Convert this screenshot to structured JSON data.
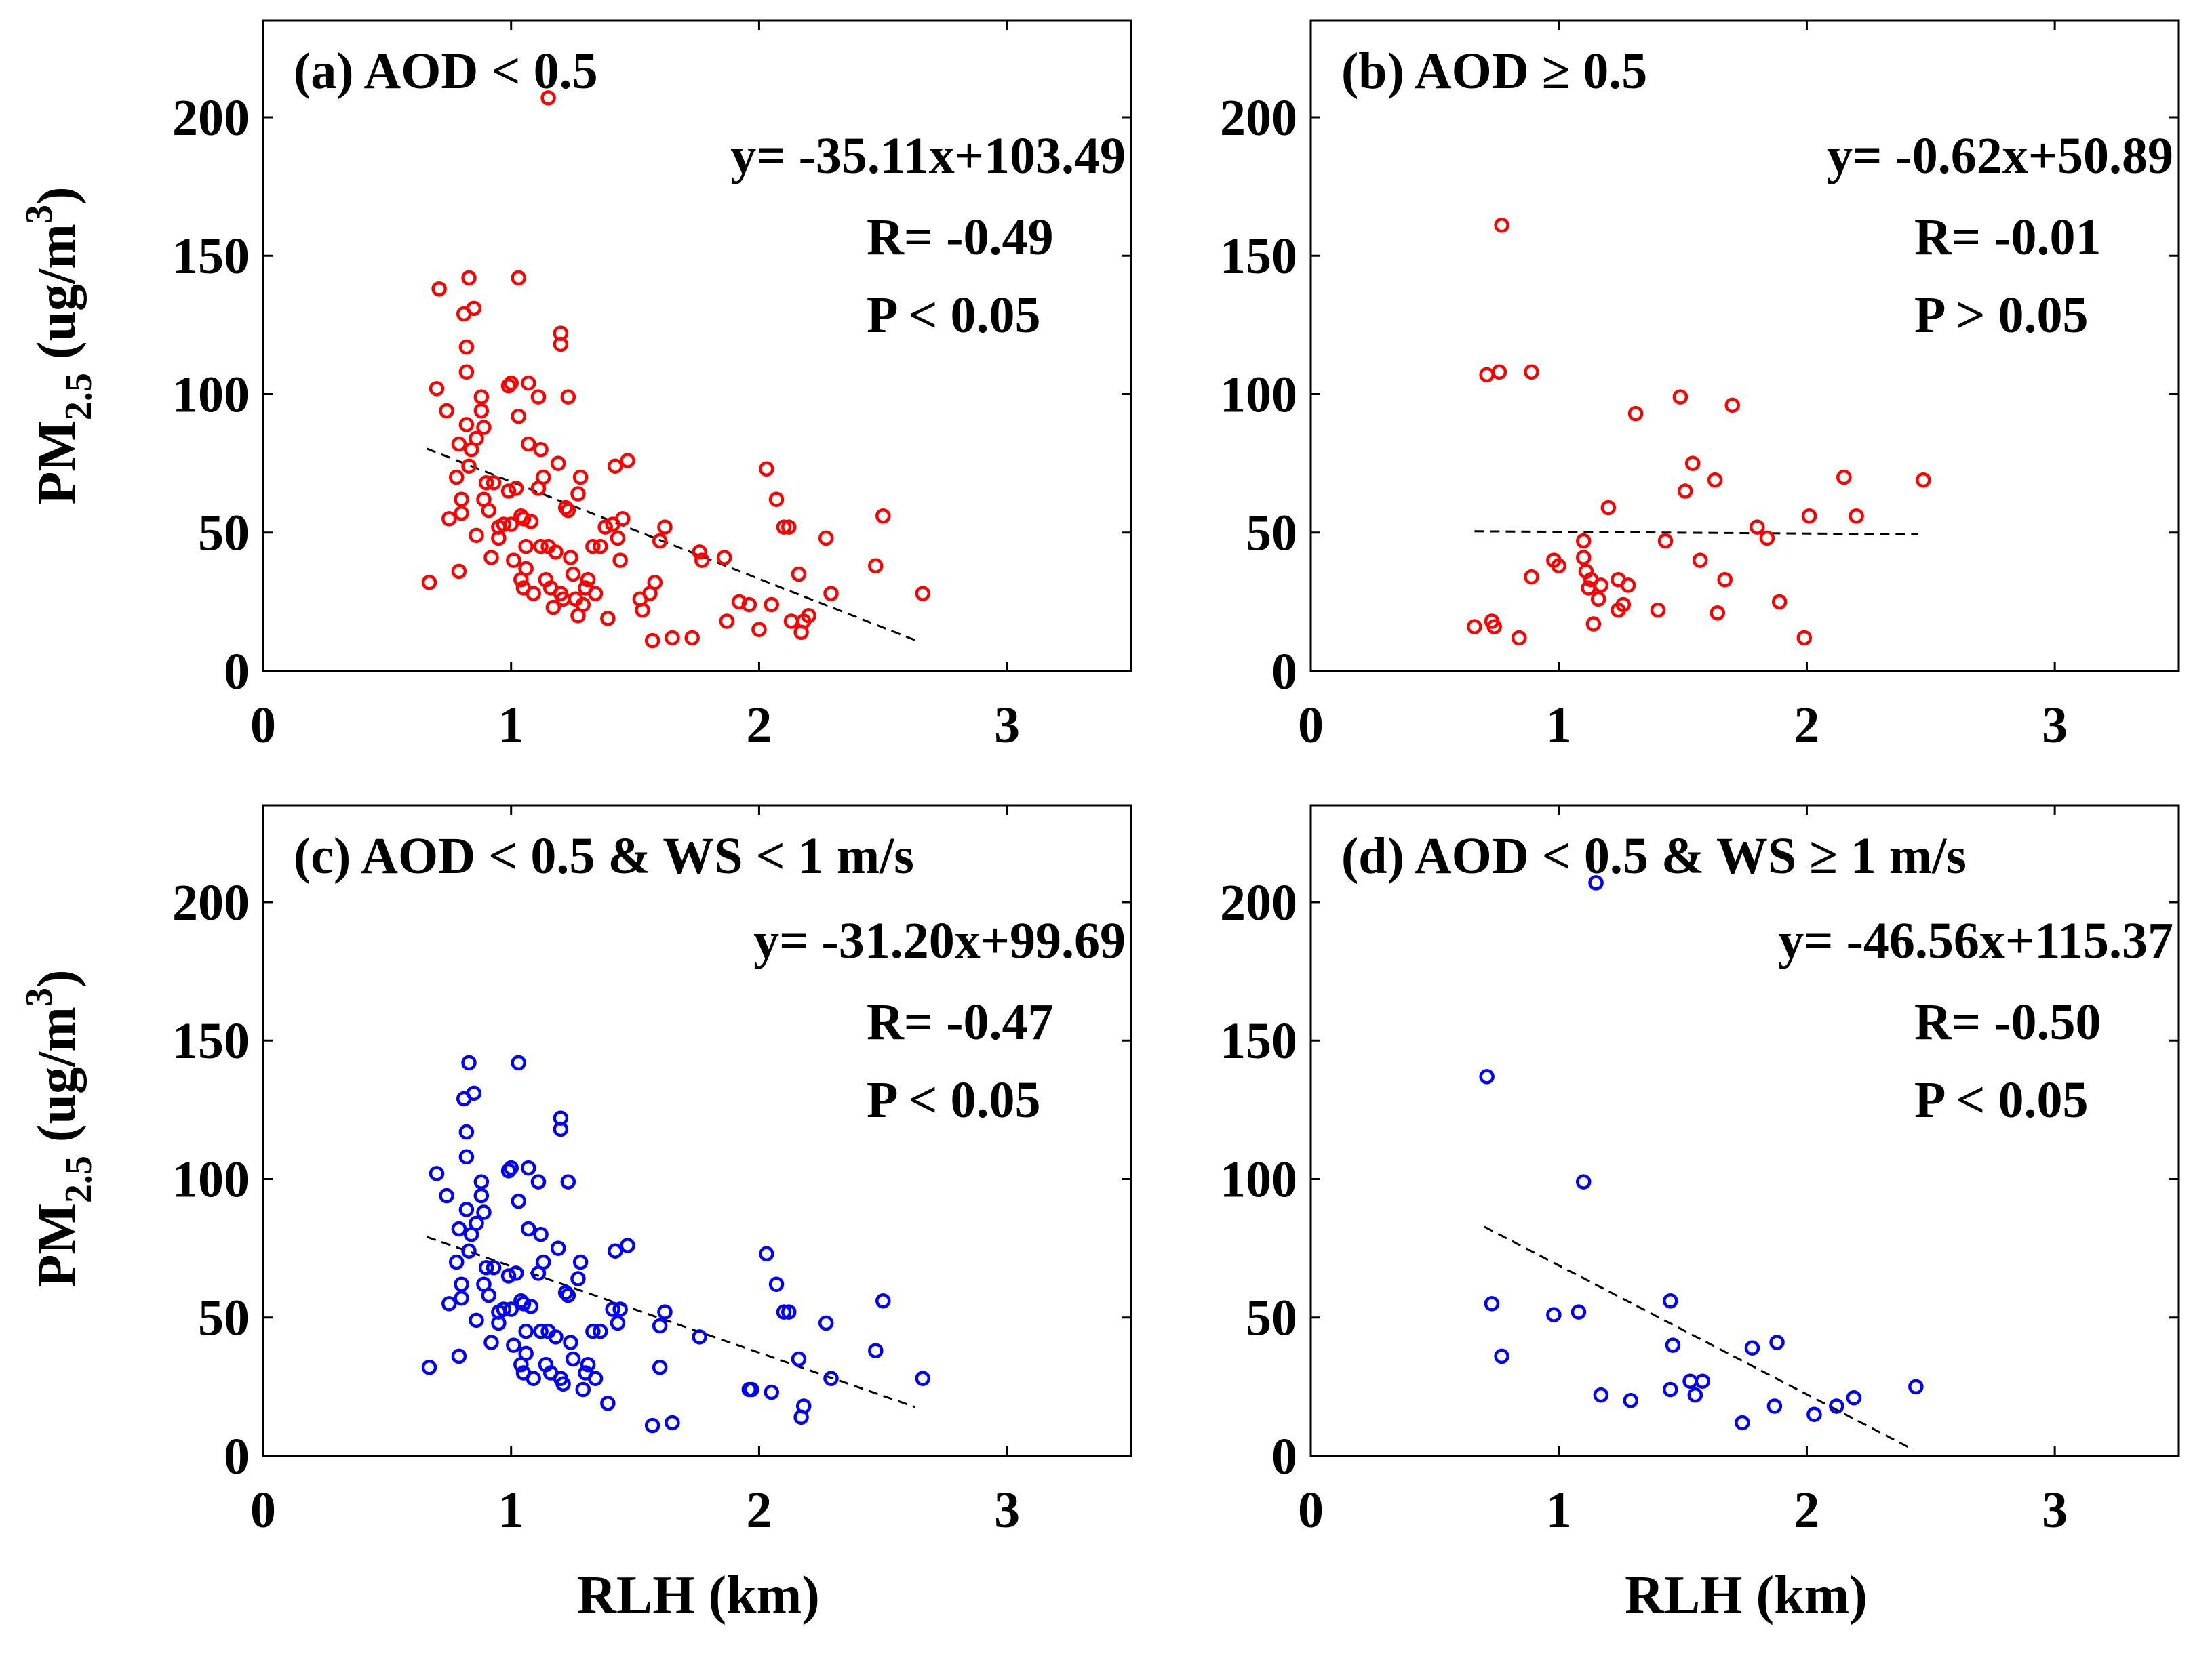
{
  "figure": {
    "ylabel": {
      "main": "PM",
      "sub": "2.5",
      "units": " (ug/m",
      "exponent": "3",
      "close": ")"
    },
    "xlabel": "RLH (km)"
  },
  "chart_data": [
    {
      "type": "scatter",
      "title": "(a) AOD < 0.5",
      "equation": "y= -35.11x+103.49",
      "r_text": "R= -0.49",
      "p_text": "P < 0.05",
      "xlabel": "",
      "ylabel": "PM2.5 (ug/m3)",
      "xlim": [
        0,
        3.5
      ],
      "ylim": [
        0,
        235
      ],
      "xticks": [
        "0",
        "1",
        "2",
        "3"
      ],
      "yticks": [
        "0",
        "50",
        "100",
        "150",
        "200"
      ],
      "color": "#ff0000",
      "fit": {
        "slope": -35.11,
        "intercept": 103.49,
        "x_range": [
          0.66,
          2.63
        ]
      },
      "points": [
        [
          0.67,
          32
        ],
        [
          0.71,
          138
        ],
        [
          0.7,
          102
        ],
        [
          0.74,
          94
        ],
        [
          0.75,
          55
        ],
        [
          0.78,
          70
        ],
        [
          0.79,
          36
        ],
        [
          0.79,
          82
        ],
        [
          0.8,
          62
        ],
        [
          0.8,
          57
        ],
        [
          0.82,
          108
        ],
        [
          0.82,
          117
        ],
        [
          0.81,
          129
        ],
        [
          0.83,
          142
        ],
        [
          0.82,
          89
        ],
        [
          0.83,
          74
        ],
        [
          0.84,
          80
        ],
        [
          0.85,
          131
        ],
        [
          0.86,
          84
        ],
        [
          0.86,
          49
        ],
        [
          0.88,
          99
        ],
        [
          0.88,
          94
        ],
        [
          0.89,
          62
        ],
        [
          0.9,
          68
        ],
        [
          0.89,
          88
        ],
        [
          0.91,
          58
        ],
        [
          0.92,
          41
        ],
        [
          0.93,
          68
        ],
        [
          0.95,
          52
        ],
        [
          0.95,
          48
        ],
        [
          0.97,
          53
        ],
        [
          0.99,
          103
        ],
        [
          1.0,
          104
        ],
        [
          1.0,
          53
        ],
        [
          0.99,
          65
        ],
        [
          1.01,
          40
        ],
        [
          1.02,
          66
        ],
        [
          1.03,
          92
        ],
        [
          1.04,
          56
        ],
        [
          1.03,
          142
        ],
        [
          1.05,
          55
        ],
        [
          1.04,
          33
        ],
        [
          1.05,
          30
        ],
        [
          1.06,
          45
        ],
        [
          1.06,
          37
        ],
        [
          1.07,
          82
        ],
        [
          1.07,
          104
        ],
        [
          1.08,
          54
        ],
        [
          1.09,
          28
        ],
        [
          1.11,
          99
        ],
        [
          1.11,
          66
        ],
        [
          1.12,
          45
        ],
        [
          1.13,
          70
        ],
        [
          1.12,
          80
        ],
        [
          1.14,
          33
        ],
        [
          1.15,
          45
        ],
        [
          1.16,
          30
        ],
        [
          1.15,
          207
        ],
        [
          1.17,
          23
        ],
        [
          1.18,
          43
        ],
        [
          1.2,
          122
        ],
        [
          1.2,
          118
        ],
        [
          1.19,
          75
        ],
        [
          1.2,
          28
        ],
        [
          1.21,
          26
        ],
        [
          1.22,
          59
        ],
        [
          1.23,
          58
        ],
        [
          1.23,
          99
        ],
        [
          1.24,
          41
        ],
        [
          1.25,
          35
        ],
        [
          1.26,
          26
        ],
        [
          1.27,
          64
        ],
        [
          1.28,
          70
        ],
        [
          1.27,
          20
        ],
        [
          1.29,
          24
        ],
        [
          1.3,
          30
        ],
        [
          1.31,
          33
        ],
        [
          1.33,
          45
        ],
        [
          1.34,
          28
        ],
        [
          1.36,
          45
        ],
        [
          1.38,
          52
        ],
        [
          1.39,
          19
        ],
        [
          1.41,
          53
        ],
        [
          1.42,
          74
        ],
        [
          1.43,
          48
        ],
        [
          1.44,
          40
        ],
        [
          1.45,
          55
        ],
        [
          1.47,
          76
        ],
        [
          1.52,
          26
        ],
        [
          1.53,
          22
        ],
        [
          1.56,
          28
        ],
        [
          1.57,
          11
        ],
        [
          1.58,
          32
        ],
        [
          1.6,
          47
        ],
        [
          1.62,
          52
        ],
        [
          1.65,
          12
        ],
        [
          1.73,
          12
        ],
        [
          1.76,
          43
        ],
        [
          1.77,
          40
        ],
        [
          1.86,
          41
        ],
        [
          1.87,
          18
        ],
        [
          1.92,
          25
        ],
        [
          1.96,
          24
        ],
        [
          2.0,
          15
        ],
        [
          2.03,
          73
        ],
        [
          2.05,
          24
        ],
        [
          2.07,
          62
        ],
        [
          2.1,
          52
        ],
        [
          2.12,
          52
        ],
        [
          2.13,
          18
        ],
        [
          2.16,
          35
        ],
        [
          2.17,
          14
        ],
        [
          2.18,
          18
        ],
        [
          2.2,
          20
        ],
        [
          2.27,
          48
        ],
        [
          2.29,
          28
        ],
        [
          2.47,
          38
        ],
        [
          2.5,
          56
        ],
        [
          2.66,
          28
        ]
      ]
    },
    {
      "type": "scatter",
      "title": "(b) AOD ≥ 0.5",
      "equation": "y= -0.62x+50.89",
      "r_text": "R= -0.01",
      "p_text": "P > 0.05",
      "xlabel": "",
      "ylabel": "",
      "xlim": [
        0,
        3.5
      ],
      "ylim": [
        0,
        235
      ],
      "xticks": [
        "0",
        "1",
        "2",
        "3"
      ],
      "yticks": [
        "0",
        "50",
        "100",
        "150",
        "200"
      ],
      "color": "#ff0000",
      "fit": {
        "slope": -0.62,
        "intercept": 50.89,
        "x_range": [
          0.66,
          2.45
        ]
      },
      "points": [
        [
          0.66,
          16
        ],
        [
          0.71,
          107
        ],
        [
          0.73,
          18
        ],
        [
          0.74,
          16
        ],
        [
          0.76,
          108
        ],
        [
          0.77,
          161
        ],
        [
          0.84,
          12
        ],
        [
          0.89,
          108
        ],
        [
          0.89,
          34
        ],
        [
          0.98,
          40
        ],
        [
          1.0,
          38
        ],
        [
          1.1,
          47
        ],
        [
          1.1,
          41
        ],
        [
          1.11,
          36
        ],
        [
          1.12,
          30
        ],
        [
          1.13,
          33
        ],
        [
          1.14,
          17
        ],
        [
          1.16,
          26
        ],
        [
          1.17,
          31
        ],
        [
          1.2,
          59
        ],
        [
          1.24,
          33
        ],
        [
          1.24,
          22
        ],
        [
          1.26,
          24
        ],
        [
          1.28,
          31
        ],
        [
          1.31,
          93
        ],
        [
          1.4,
          22
        ],
        [
          1.43,
          47
        ],
        [
          1.49,
          99
        ],
        [
          1.51,
          65
        ],
        [
          1.54,
          75
        ],
        [
          1.57,
          40
        ],
        [
          1.63,
          69
        ],
        [
          1.64,
          21
        ],
        [
          1.67,
          33
        ],
        [
          1.7,
          96
        ],
        [
          1.8,
          52
        ],
        [
          1.84,
          48
        ],
        [
          1.89,
          25
        ],
        [
          1.99,
          12
        ],
        [
          2.01,
          56
        ],
        [
          2.15,
          70
        ],
        [
          2.2,
          56
        ],
        [
          2.47,
          69
        ]
      ]
    },
    {
      "type": "scatter",
      "title": "(c) AOD < 0.5 & WS < 1 m/s",
      "equation": "y= -31.20x+99.69",
      "r_text": "R= -0.47",
      "p_text": "P < 0.05",
      "xlabel": "RLH (km)",
      "ylabel": "PM2.5 (ug/m3)",
      "xlim": [
        0,
        3.5
      ],
      "ylim": [
        0,
        235
      ],
      "xticks": [
        "0",
        "1",
        "2",
        "3"
      ],
      "yticks": [
        "0",
        "50",
        "100",
        "150",
        "200"
      ],
      "color": "#0000ff",
      "fit": {
        "slope": -31.2,
        "intercept": 99.69,
        "x_range": [
          0.66,
          2.63
        ]
      },
      "points": [
        [
          0.67,
          32
        ],
        [
          0.7,
          102
        ],
        [
          0.74,
          94
        ],
        [
          0.75,
          55
        ],
        [
          0.78,
          70
        ],
        [
          0.79,
          36
        ],
        [
          0.79,
          82
        ],
        [
          0.8,
          62
        ],
        [
          0.8,
          57
        ],
        [
          0.82,
          108
        ],
        [
          0.82,
          117
        ],
        [
          0.81,
          129
        ],
        [
          0.83,
          142
        ],
        [
          0.82,
          89
        ],
        [
          0.83,
          74
        ],
        [
          0.84,
          80
        ],
        [
          0.85,
          131
        ],
        [
          0.86,
          84
        ],
        [
          0.86,
          49
        ],
        [
          0.88,
          99
        ],
        [
          0.88,
          94
        ],
        [
          0.89,
          62
        ],
        [
          0.9,
          68
        ],
        [
          0.89,
          88
        ],
        [
          0.91,
          58
        ],
        [
          0.92,
          41
        ],
        [
          0.93,
          68
        ],
        [
          0.95,
          52
        ],
        [
          0.95,
          48
        ],
        [
          0.97,
          53
        ],
        [
          0.99,
          103
        ],
        [
          1.0,
          104
        ],
        [
          1.0,
          53
        ],
        [
          0.99,
          65
        ],
        [
          1.01,
          40
        ],
        [
          1.02,
          66
        ],
        [
          1.03,
          92
        ],
        [
          1.04,
          56
        ],
        [
          1.03,
          142
        ],
        [
          1.05,
          55
        ],
        [
          1.04,
          33
        ],
        [
          1.05,
          30
        ],
        [
          1.06,
          45
        ],
        [
          1.06,
          37
        ],
        [
          1.07,
          82
        ],
        [
          1.07,
          104
        ],
        [
          1.08,
          54
        ],
        [
          1.09,
          28
        ],
        [
          1.11,
          99
        ],
        [
          1.11,
          66
        ],
        [
          1.12,
          45
        ],
        [
          1.13,
          70
        ],
        [
          1.12,
          80
        ],
        [
          1.14,
          33
        ],
        [
          1.15,
          45
        ],
        [
          1.16,
          30
        ],
        [
          1.18,
          43
        ],
        [
          1.2,
          122
        ],
        [
          1.2,
          118
        ],
        [
          1.19,
          75
        ],
        [
          1.2,
          28
        ],
        [
          1.21,
          26
        ],
        [
          1.22,
          59
        ],
        [
          1.23,
          58
        ],
        [
          1.23,
          99
        ],
        [
          1.24,
          41
        ],
        [
          1.25,
          35
        ],
        [
          1.27,
          64
        ],
        [
          1.28,
          70
        ],
        [
          1.29,
          24
        ],
        [
          1.3,
          30
        ],
        [
          1.31,
          33
        ],
        [
          1.33,
          45
        ],
        [
          1.34,
          28
        ],
        [
          1.36,
          45
        ],
        [
          1.39,
          19
        ],
        [
          1.41,
          53
        ],
        [
          1.42,
          74
        ],
        [
          1.43,
          48
        ],
        [
          1.44,
          53
        ],
        [
          1.47,
          76
        ],
        [
          1.57,
          11
        ],
        [
          1.6,
          32
        ],
        [
          1.6,
          47
        ],
        [
          1.62,
          52
        ],
        [
          1.65,
          12
        ],
        [
          1.76,
          43
        ],
        [
          1.96,
          24
        ],
        [
          1.97,
          24
        ],
        [
          2.03,
          73
        ],
        [
          2.05,
          23
        ],
        [
          2.07,
          62
        ],
        [
          2.1,
          52
        ],
        [
          2.12,
          52
        ],
        [
          2.16,
          35
        ],
        [
          2.17,
          14
        ],
        [
          2.18,
          18
        ],
        [
          2.27,
          48
        ],
        [
          2.29,
          28
        ],
        [
          2.47,
          38
        ],
        [
          2.5,
          56
        ],
        [
          2.66,
          28
        ]
      ]
    },
    {
      "type": "scatter",
      "title": "(d) AOD < 0.5 & WS ≥ 1 m/s",
      "equation": "y= -46.56x+115.37",
      "r_text": "R= -0.50",
      "p_text": "P < 0.05",
      "xlabel": "RLH (km)",
      "ylabel": "",
      "xlim": [
        0,
        3.5
      ],
      "ylim": [
        0,
        235
      ],
      "xticks": [
        "0",
        "1",
        "2",
        "3"
      ],
      "yticks": [
        "0",
        "50",
        "100",
        "150",
        "200"
      ],
      "color": "#0000ff",
      "fit": {
        "slope": -46.56,
        "intercept": 115.37,
        "x_range": [
          0.7,
          2.43
        ]
      },
      "points": [
        [
          0.71,
          137
        ],
        [
          0.73,
          55
        ],
        [
          0.77,
          36
        ],
        [
          0.98,
          51
        ],
        [
          1.08,
          52
        ],
        [
          1.1,
          99
        ],
        [
          1.15,
          207
        ],
        [
          1.17,
          22
        ],
        [
          1.29,
          20
        ],
        [
          1.45,
          24
        ],
        [
          1.45,
          56
        ],
        [
          1.46,
          40
        ],
        [
          1.53,
          27
        ],
        [
          1.55,
          22
        ],
        [
          1.58,
          27
        ],
        [
          1.74,
          12
        ],
        [
          1.78,
          39
        ],
        [
          1.87,
          18
        ],
        [
          1.88,
          41
        ],
        [
          2.03,
          15
        ],
        [
          2.12,
          18
        ],
        [
          2.19,
          21
        ],
        [
          2.44,
          25
        ]
      ]
    }
  ]
}
